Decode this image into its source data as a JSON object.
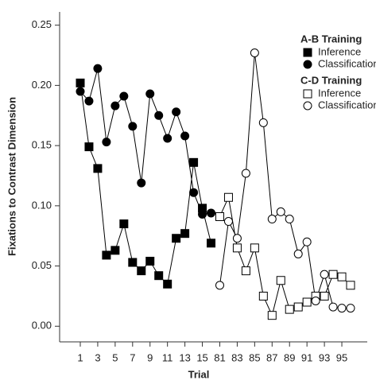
{
  "chart_data": {
    "type": "line",
    "x_label": "Trial",
    "y_label": "Fixations to Contrast Dimension",
    "categories": [
      "1",
      null,
      "3",
      null,
      "5",
      null,
      "7",
      null,
      "9",
      null,
      "11",
      null,
      "13",
      null,
      "15",
      null,
      "81",
      null,
      "83",
      null,
      "85",
      null,
      "87",
      null,
      "89",
      null,
      "91",
      null,
      "93",
      null,
      "95",
      null
    ],
    "ylim": [
      -0.013,
      0.261
    ],
    "yticks": [
      {
        "value": 0,
        "label": "0.00"
      },
      0.05,
      {
        "value": 0.1,
        "label": "0.10"
      },
      0.15,
      {
        "value": 0.2,
        "label": "0.20"
      },
      0.25
    ],
    "series_groups": [
      {
        "name": "A-B Training",
        "series": [
          {
            "name": "Inference",
            "color": "#000000",
            "fill": "#000000",
            "marker": "square",
            "values": [
              0.202,
              0.149,
              0.131,
              0.059,
              0.063,
              0.085,
              0.053,
              0.046,
              0.054,
              0.042,
              0.035,
              0.073,
              0.077,
              0.136,
              0.098,
              0.069,
              null,
              null,
              null,
              null,
              null,
              null,
              null,
              null,
              null,
              null,
              null,
              null,
              null,
              null,
              null,
              null
            ]
          },
          {
            "name": "Classification",
            "color": "#000000",
            "fill": "#000000",
            "marker": "circle",
            "values": [
              0.195,
              0.187,
              0.214,
              0.153,
              0.183,
              0.191,
              0.166,
              0.119,
              0.193,
              0.175,
              0.156,
              0.178,
              0.158,
              0.111,
              0.093,
              0.094,
              null,
              null,
              null,
              null,
              null,
              null,
              null,
              null,
              null,
              null,
              null,
              null,
              null,
              null,
              null,
              null
            ]
          }
        ]
      },
      {
        "name": "C-D Training",
        "series": [
          {
            "name": "Inference",
            "color": "#000000",
            "fill": "#ffffff",
            "marker": "square",
            "values": [
              null,
              null,
              null,
              null,
              null,
              null,
              null,
              null,
              null,
              null,
              null,
              null,
              null,
              null,
              null,
              null,
              0.091,
              0.107,
              0.065,
              0.046,
              0.065,
              0.025,
              0.009,
              0.038,
              0.014,
              0.016,
              0.02,
              0.025,
              0.025,
              0.043,
              0.041,
              0.034
            ]
          },
          {
            "name": "Classification",
            "color": "#000000",
            "fill": "#ffffff",
            "marker": "circle",
            "values": [
              null,
              null,
              null,
              null,
              null,
              null,
              null,
              null,
              null,
              null,
              null,
              null,
              null,
              null,
              null,
              null,
              0.034,
              0.087,
              0.073,
              0.127,
              0.227,
              0.169,
              0.089,
              0.095,
              0.089,
              0.06,
              0.07,
              0.021,
              0.043,
              0.016,
              0.015,
              0.015
            ]
          }
        ]
      }
    ]
  }
}
